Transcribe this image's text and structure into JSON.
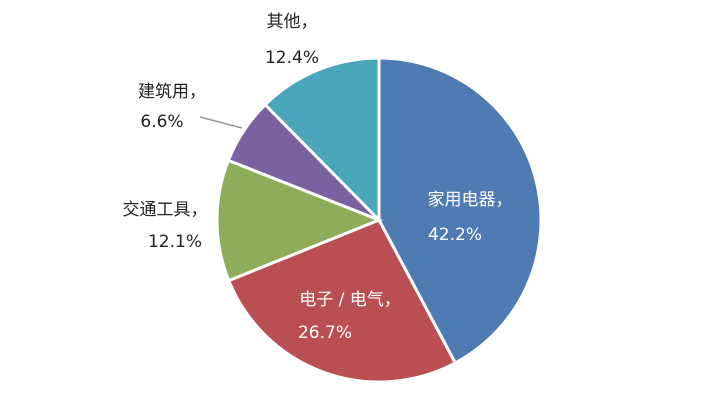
{
  "chart_data": {
    "type": "pie",
    "categories": [
      "家用电器，",
      "电子 / 电气，",
      "交通工具，",
      "建筑用，",
      "其他，"
    ],
    "values": [
      42.2,
      26.7,
      12.1,
      6.6,
      12.4
    ],
    "value_labels": [
      "42.2%",
      "26.7%",
      "12.1%",
      "6.6%",
      "12.4%"
    ],
    "colors": [
      "#4f7bb3",
      "#b94f52",
      "#8fac5a",
      "#7a62a0",
      "#4aa6bb"
    ]
  }
}
